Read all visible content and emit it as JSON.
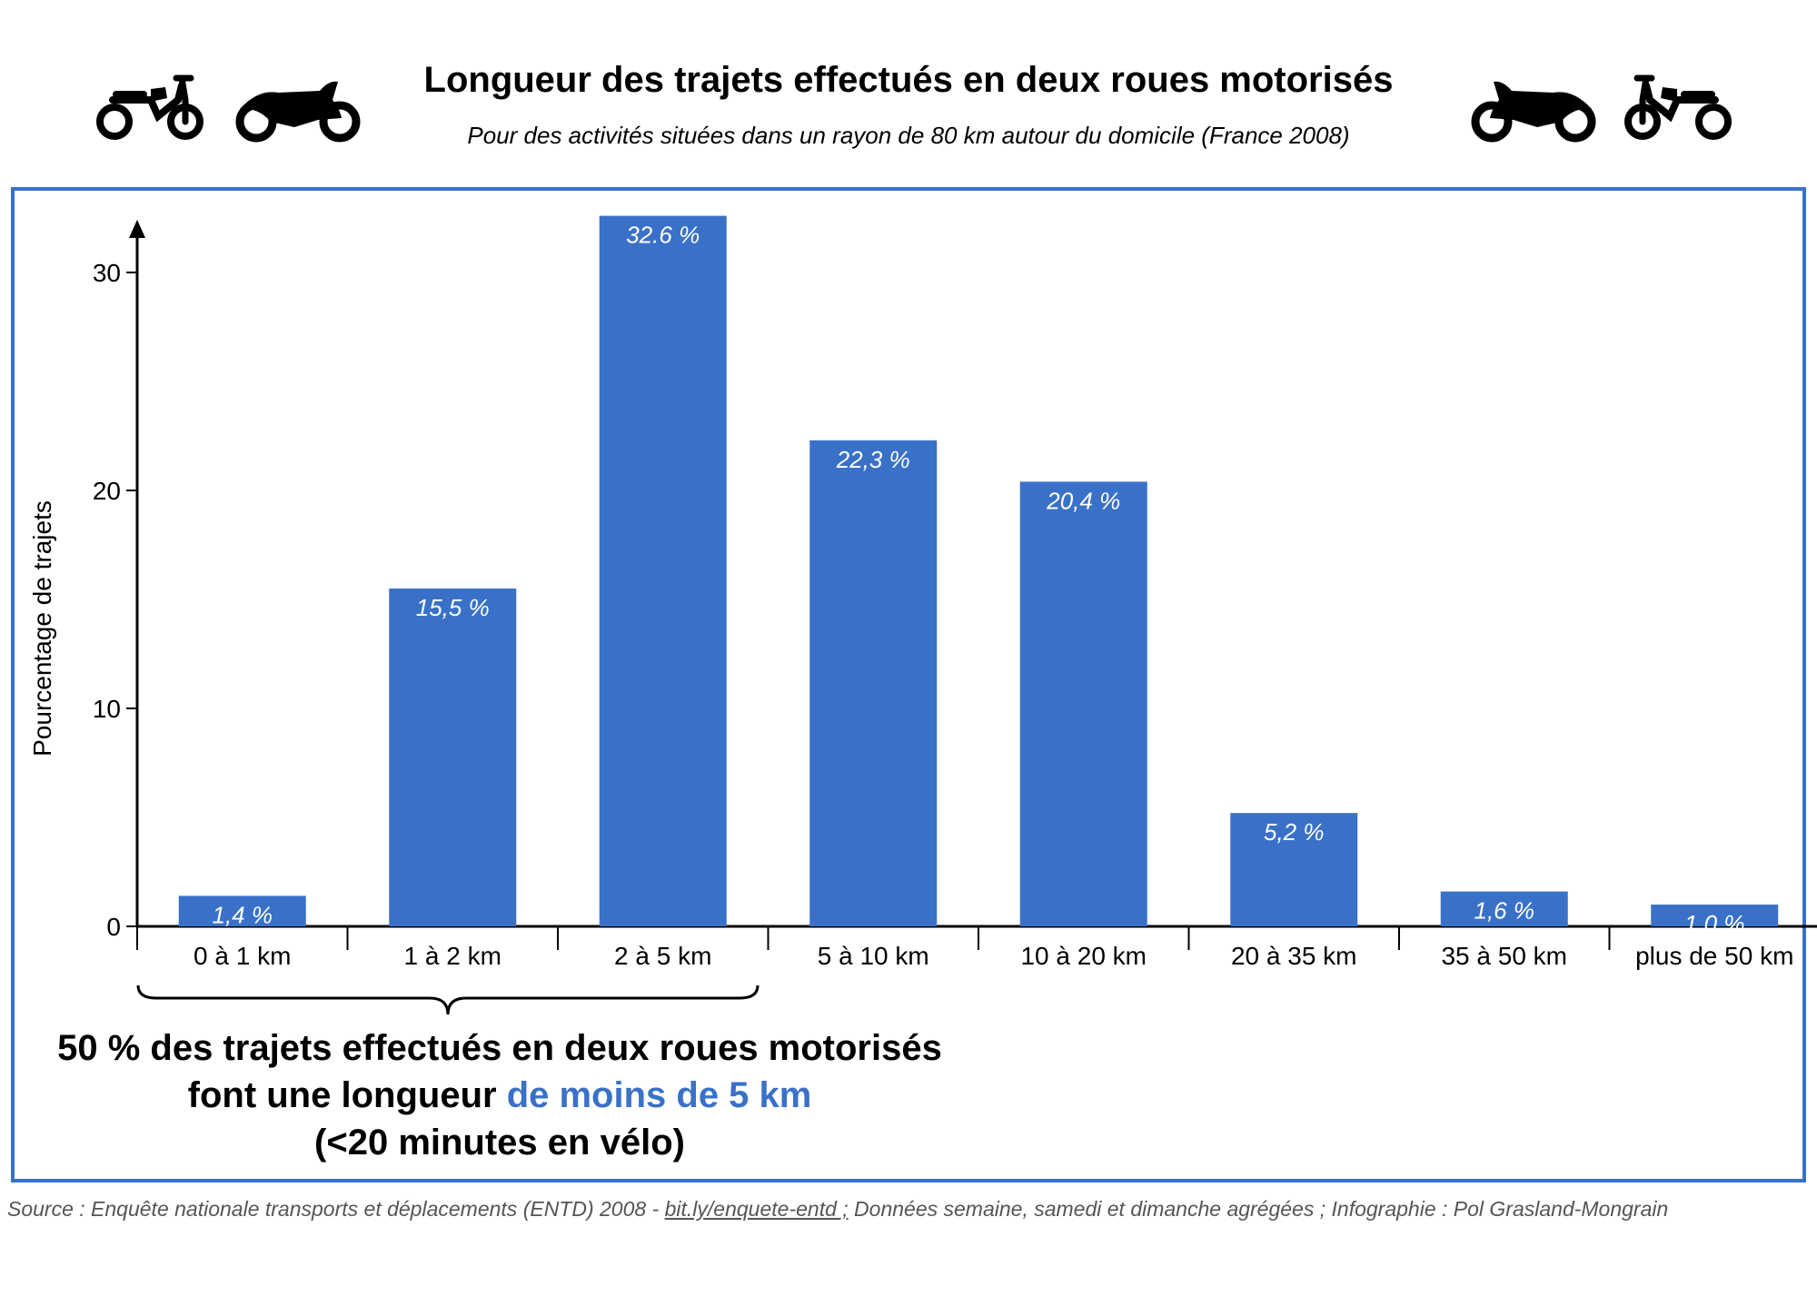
{
  "header": {
    "title": "Longueur des trajets effectués en deux roues motorisés",
    "subtitle": "Pour des activités situées dans un rayon de 80 km autour du domicile (France 2008)",
    "icons": [
      "moped-icon",
      "motorcycle-icon",
      "motorcycle-icon",
      "moped-icon"
    ]
  },
  "chart_data": {
    "type": "bar",
    "title": "Longueur des trajets effectués en deux roues motorisés",
    "subtitle": "Pour des activités situées dans un rayon de 80 km autour du domicile (France 2008)",
    "xlabel": "",
    "ylabel": "Pourcentage de trajets",
    "categories": [
      "0 à 1 km",
      "1 à 2 km",
      "2 à 5 km",
      "5 à 10 km",
      "10 à 20 km",
      "20 à 35 km",
      "35 à 50 km",
      "plus de 50 km"
    ],
    "values": [
      1.4,
      15.5,
      32.6,
      22.3,
      20.4,
      5.2,
      1.6,
      1.0
    ],
    "value_labels": [
      "1,4 %",
      "15,5 %",
      "32.6 %",
      "22,3 %",
      "20,4 %",
      "5,2 %",
      "1,6 %",
      "1,0 %"
    ],
    "yticks": [
      0,
      10,
      20,
      30
    ],
    "ylim": [
      0,
      33
    ],
    "grid": false,
    "bar_color": "#3a71c8"
  },
  "conclusion": {
    "line1": "50 % des trajets effectués en deux roues motorisés",
    "line2_prefix": "font une longueur ",
    "line2_highlight": "de moins de 5 km",
    "line3": "(<20 minutes en vélo)"
  },
  "footer": {
    "source_prefix": "Source :  Enquête nationale transports et déplacements (ENTD) 2008 - ",
    "source_link": "bit.ly/enquete-entd ;",
    "source_suffix": " Données semaine, samedi et dimanche agrégées ; Infographie : Pol Grasland-Mongrain"
  },
  "colors": {
    "accent": "#3a71c8",
    "text": "#000000",
    "source_text": "#555555"
  }
}
